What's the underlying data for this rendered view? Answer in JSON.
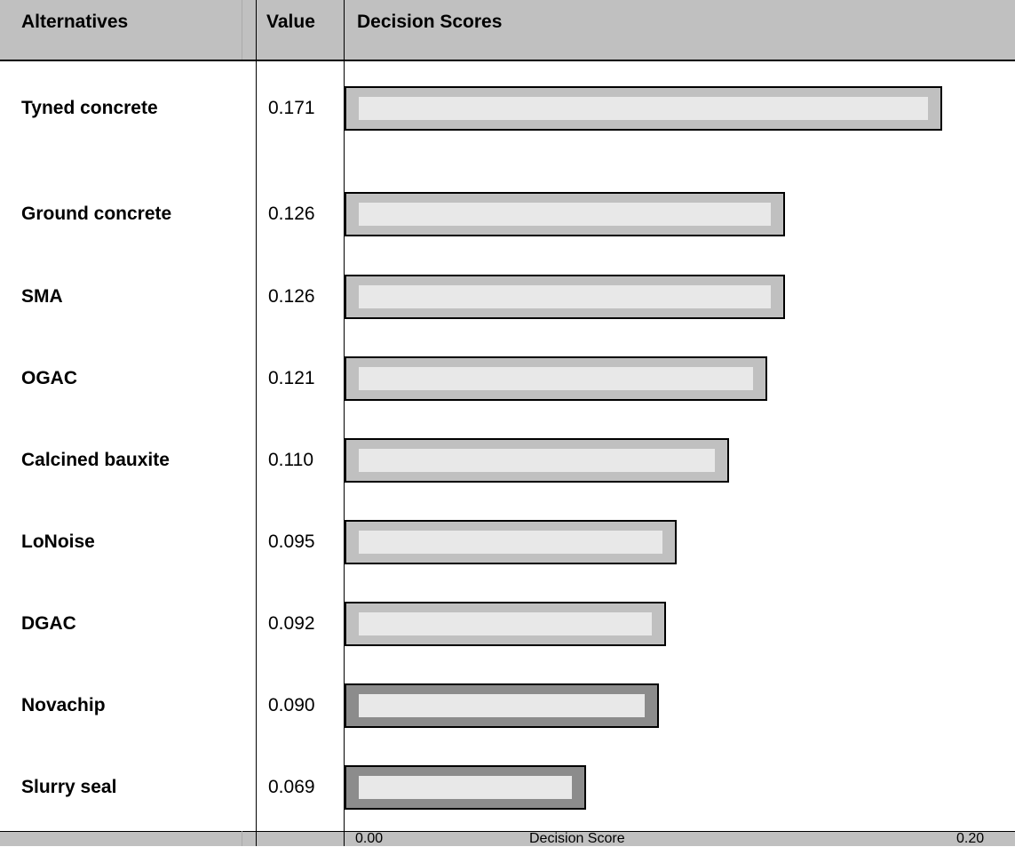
{
  "header": {
    "alternatives": "Alternatives",
    "value": "Value",
    "decision_scores": "Decision Scores"
  },
  "footer": {
    "axis_min": "0.00",
    "axis_label": "Decision Score",
    "axis_max": "0.20"
  },
  "rows": [
    {
      "name": "Tyned concrete",
      "value": "0.171"
    },
    {
      "name": "Ground concrete",
      "value": "0.126"
    },
    {
      "name": "SMA",
      "value": "0.126"
    },
    {
      "name": "OGAC",
      "value": "0.121"
    },
    {
      "name": "Calcined bauxite",
      "value": "0.110"
    },
    {
      "name": "LoNoise",
      "value": "0.095"
    },
    {
      "name": "DGAC",
      "value": "0.092"
    },
    {
      "name": "Novachip",
      "value": "0.090"
    },
    {
      "name": "Slurry seal",
      "value": "0.069"
    }
  ],
  "chart_data": {
    "type": "bar",
    "orientation": "horizontal",
    "categories": [
      "Tyned concrete",
      "Ground concrete",
      "SMA",
      "OGAC",
      "Calcined bauxite",
      "LoNoise",
      "DGAC",
      "Novachip",
      "Slurry seal"
    ],
    "values": [
      0.171,
      0.126,
      0.126,
      0.121,
      0.11,
      0.095,
      0.092,
      0.09,
      0.069
    ],
    "xlim": [
      0.0,
      0.2
    ],
    "xlabel": "Decision Score",
    "bar_colors": [
      "#c0c0c0",
      "#c0c0c0",
      "#c0c0c0",
      "#c0c0c0",
      "#c0c0c0",
      "#c0c0c0",
      "#c0c0c0",
      "#8c8c8c",
      "#8c8c8c"
    ],
    "inner_color": "#e8e8e8"
  }
}
